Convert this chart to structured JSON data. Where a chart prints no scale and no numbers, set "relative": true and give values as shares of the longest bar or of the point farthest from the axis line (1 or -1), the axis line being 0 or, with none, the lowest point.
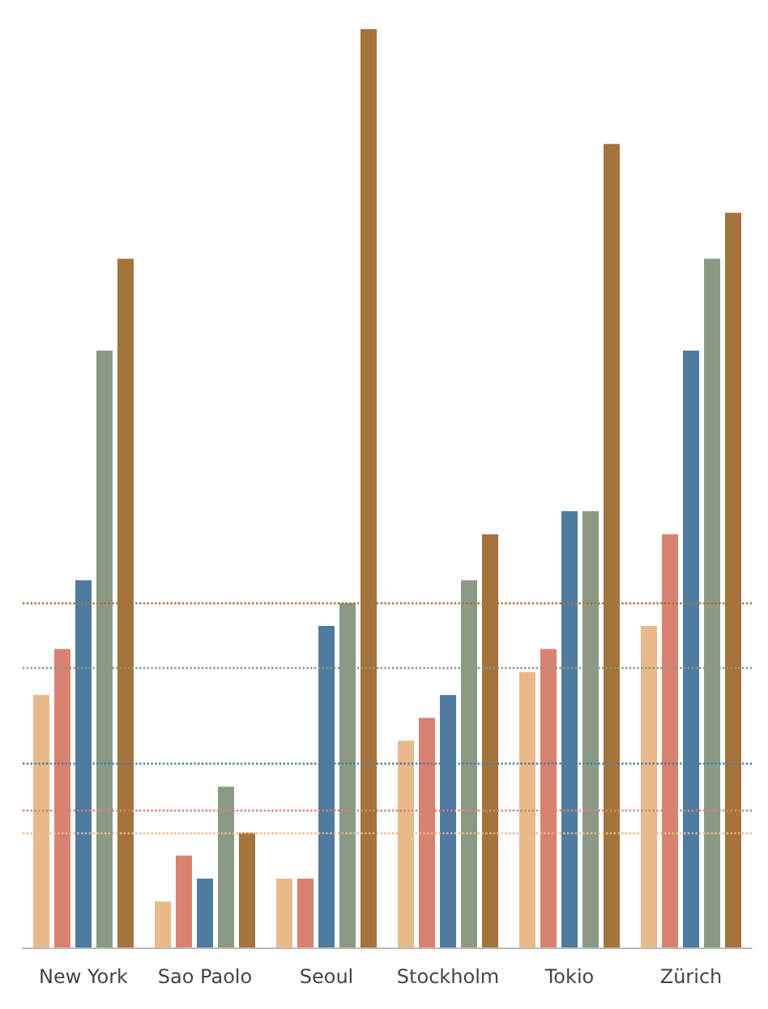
{
  "chart_data": {
    "type": "bar",
    "relative": true,
    "categories": [
      "New York",
      "Sao Paolo",
      "Seoul",
      "Stockholm",
      "Tokio",
      "Zürich"
    ],
    "series": [
      {
        "color": "#e8b98a",
        "values": [
          0.275,
          0.05,
          0.075,
          0.225,
          0.3,
          0.35
        ]
      },
      {
        "color": "#d9826f",
        "values": [
          0.325,
          0.1,
          0.075,
          0.25,
          0.325,
          0.45
        ]
      },
      {
        "color": "#4f7ba0",
        "values": [
          0.4,
          0.075,
          0.35,
          0.275,
          0.475,
          0.65
        ]
      },
      {
        "color": "#8a9a84",
        "values": [
          0.65,
          0.175,
          0.375,
          0.4,
          0.475,
          0.75
        ]
      },
      {
        "color": "#a5733c",
        "values": [
          0.75,
          0.125,
          1,
          0.45,
          0.875,
          0.8
        ]
      }
    ],
    "ref_lines": [
      {
        "axis": "y",
        "value": 0.125,
        "color": "#e8b98a",
        "line_style": "dotted"
      },
      {
        "axis": "y",
        "value": 0.15,
        "color": "#d9826f",
        "line_style": "dotted"
      },
      {
        "axis": "y",
        "value": 0.2,
        "color": "#4f7ba0",
        "line_style": "dotted"
      },
      {
        "axis": "y",
        "value": 0.305,
        "color": "#8a9a84",
        "line_style": "dotted"
      },
      {
        "axis": "y",
        "value": 0.375,
        "color": "#a5733c",
        "line_style": "dotted"
      }
    ],
    "grid": false
  }
}
